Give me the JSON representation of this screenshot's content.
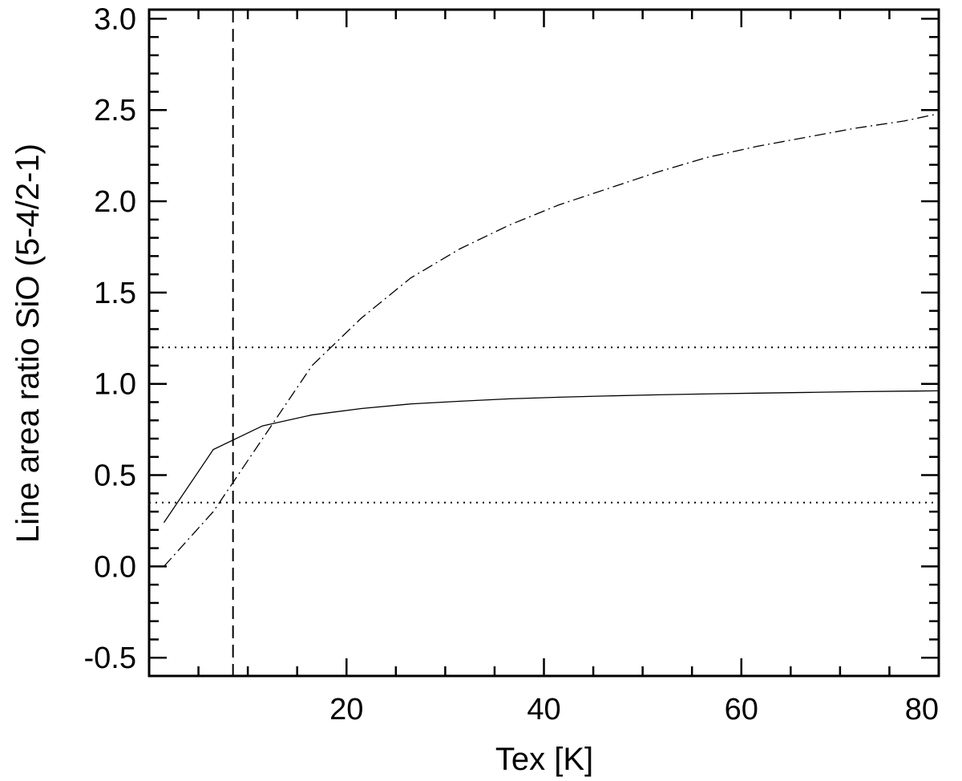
{
  "chart_data": {
    "type": "line",
    "title": "",
    "xlabel": "Tex [K]",
    "ylabel": "Line area ratio SiO (5-4/2-1)",
    "xlim": [
      0,
      80
    ],
    "ylim": [
      -0.6,
      3.05
    ],
    "x_ticks": [
      20,
      40,
      60,
      80
    ],
    "x_tick_labels": [
      "20",
      "40",
      "60",
      "80"
    ],
    "y_ticks": [
      -0.5,
      0.0,
      0.5,
      1.0,
      1.5,
      2.0,
      2.5,
      3.0
    ],
    "y_tick_labels": [
      "-0.5",
      "0.0",
      "0.5",
      "1.0",
      "1.5",
      "2.0",
      "2.5",
      "3.0"
    ],
    "grid": false,
    "series": [
      {
        "style": "solid",
        "x": [
          1.5,
          6.5,
          11.5,
          16.5,
          21.5,
          26.5,
          31.5,
          36.5,
          41.5,
          46.5,
          51.5,
          56.5,
          61.5,
          66.5,
          71.5,
          76.5,
          80
        ],
        "y": [
          0.24,
          0.64,
          0.77,
          0.83,
          0.865,
          0.89,
          0.905,
          0.918,
          0.927,
          0.934,
          0.94,
          0.945,
          0.949,
          0.953,
          0.957,
          0.96,
          0.962
        ]
      },
      {
        "style": "dash-dot",
        "x": [
          1.5,
          6.5,
          11.5,
          16.5,
          21.5,
          26.5,
          31.5,
          36.5,
          41.5,
          46.5,
          51.5,
          56.5,
          61.5,
          66.5,
          71.5,
          76.5,
          80
        ],
        "y": [
          0.0,
          0.3,
          0.7,
          1.1,
          1.36,
          1.58,
          1.74,
          1.87,
          1.98,
          2.07,
          2.16,
          2.24,
          2.3,
          2.35,
          2.4,
          2.44,
          2.48
        ]
      }
    ],
    "reference_lines": [
      {
        "orientation": "horizontal",
        "value": 1.2,
        "style": "dotted"
      },
      {
        "orientation": "horizontal",
        "value": 0.35,
        "style": "dotted"
      },
      {
        "orientation": "vertical",
        "value": 8.5,
        "style": "dashed"
      }
    ]
  }
}
